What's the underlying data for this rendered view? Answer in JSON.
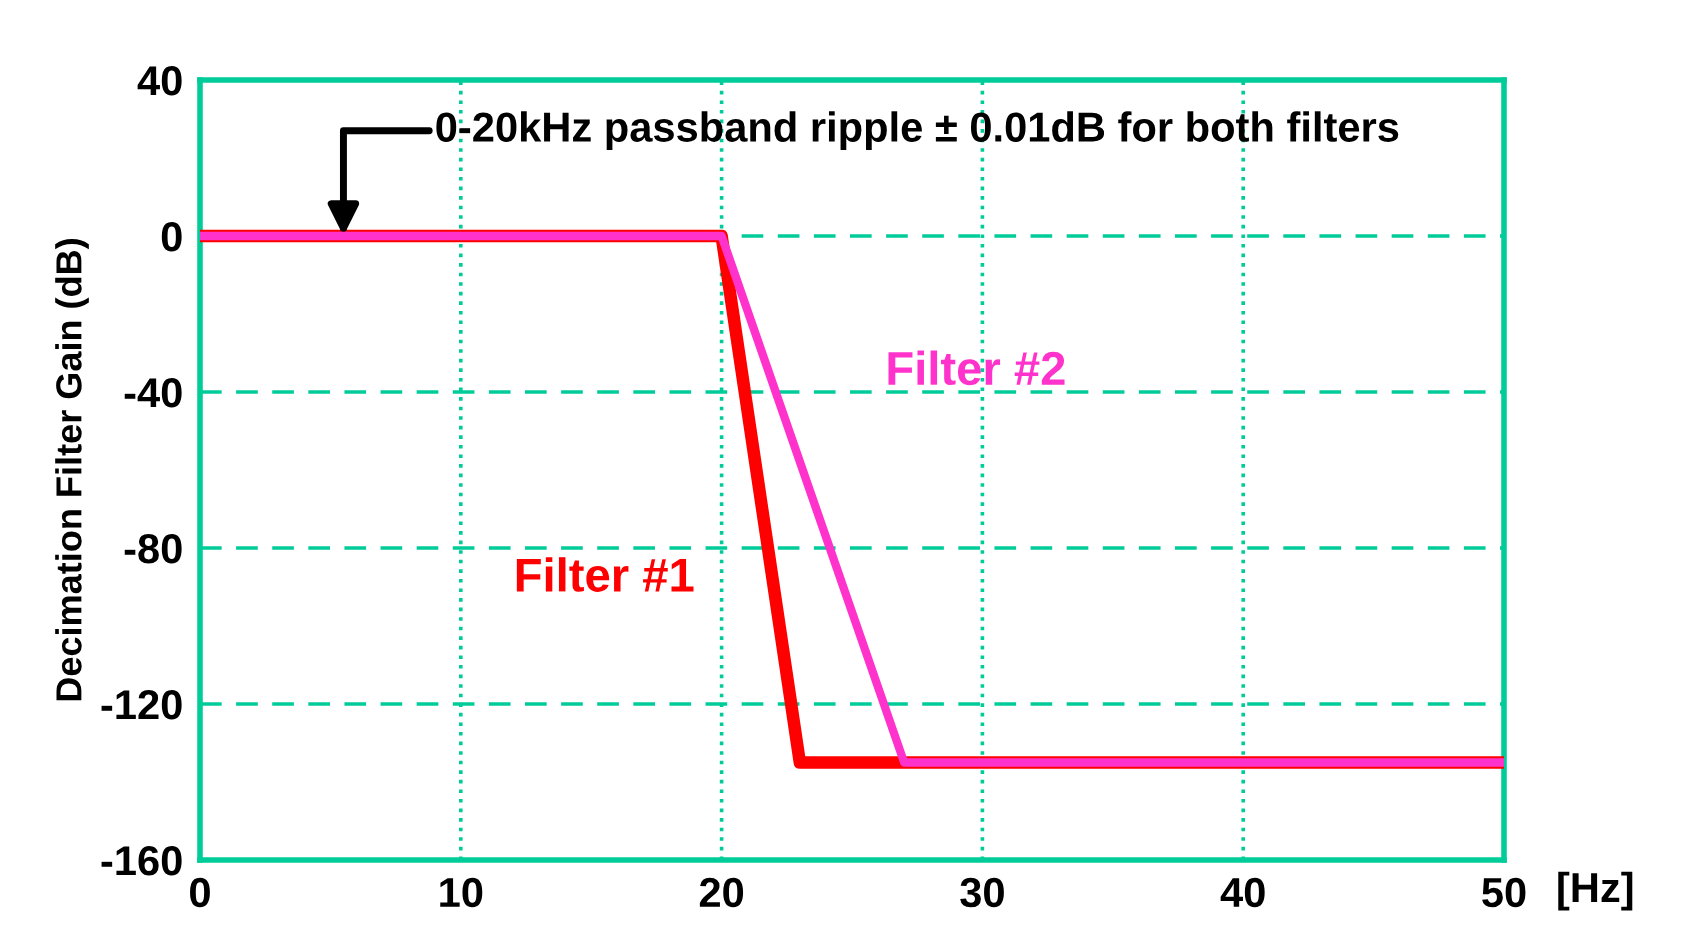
{
  "chart_data": {
    "type": "line",
    "xlabel": "[Hz]",
    "ylabel": "Decimation Filter Gain (dB)",
    "xlim": [
      0,
      50
    ],
    "ylim": [
      -160,
      40
    ],
    "xticks": [
      0,
      10,
      20,
      30,
      40,
      50
    ],
    "yticks": [
      -160,
      -120,
      -80,
      -40,
      0,
      40
    ],
    "grid": true,
    "legend": false,
    "marker": "none",
    "line_style": "solid",
    "series": [
      {
        "name": "Filter #1",
        "color": "#ff0000",
        "x": [
          0,
          20,
          23,
          50
        ],
        "values": [
          0,
          0,
          -135,
          -135
        ]
      },
      {
        "name": "Filter #2",
        "color": "#ff33cc",
        "x": [
          0,
          20,
          27,
          50
        ],
        "values": [
          0,
          0,
          -135,
          -135
        ]
      }
    ],
    "annotations": [
      {
        "text": "0-20kHz passband ripple ± 0.01dB for both filters",
        "x": 5.5,
        "y": 0
      }
    ]
  }
}
